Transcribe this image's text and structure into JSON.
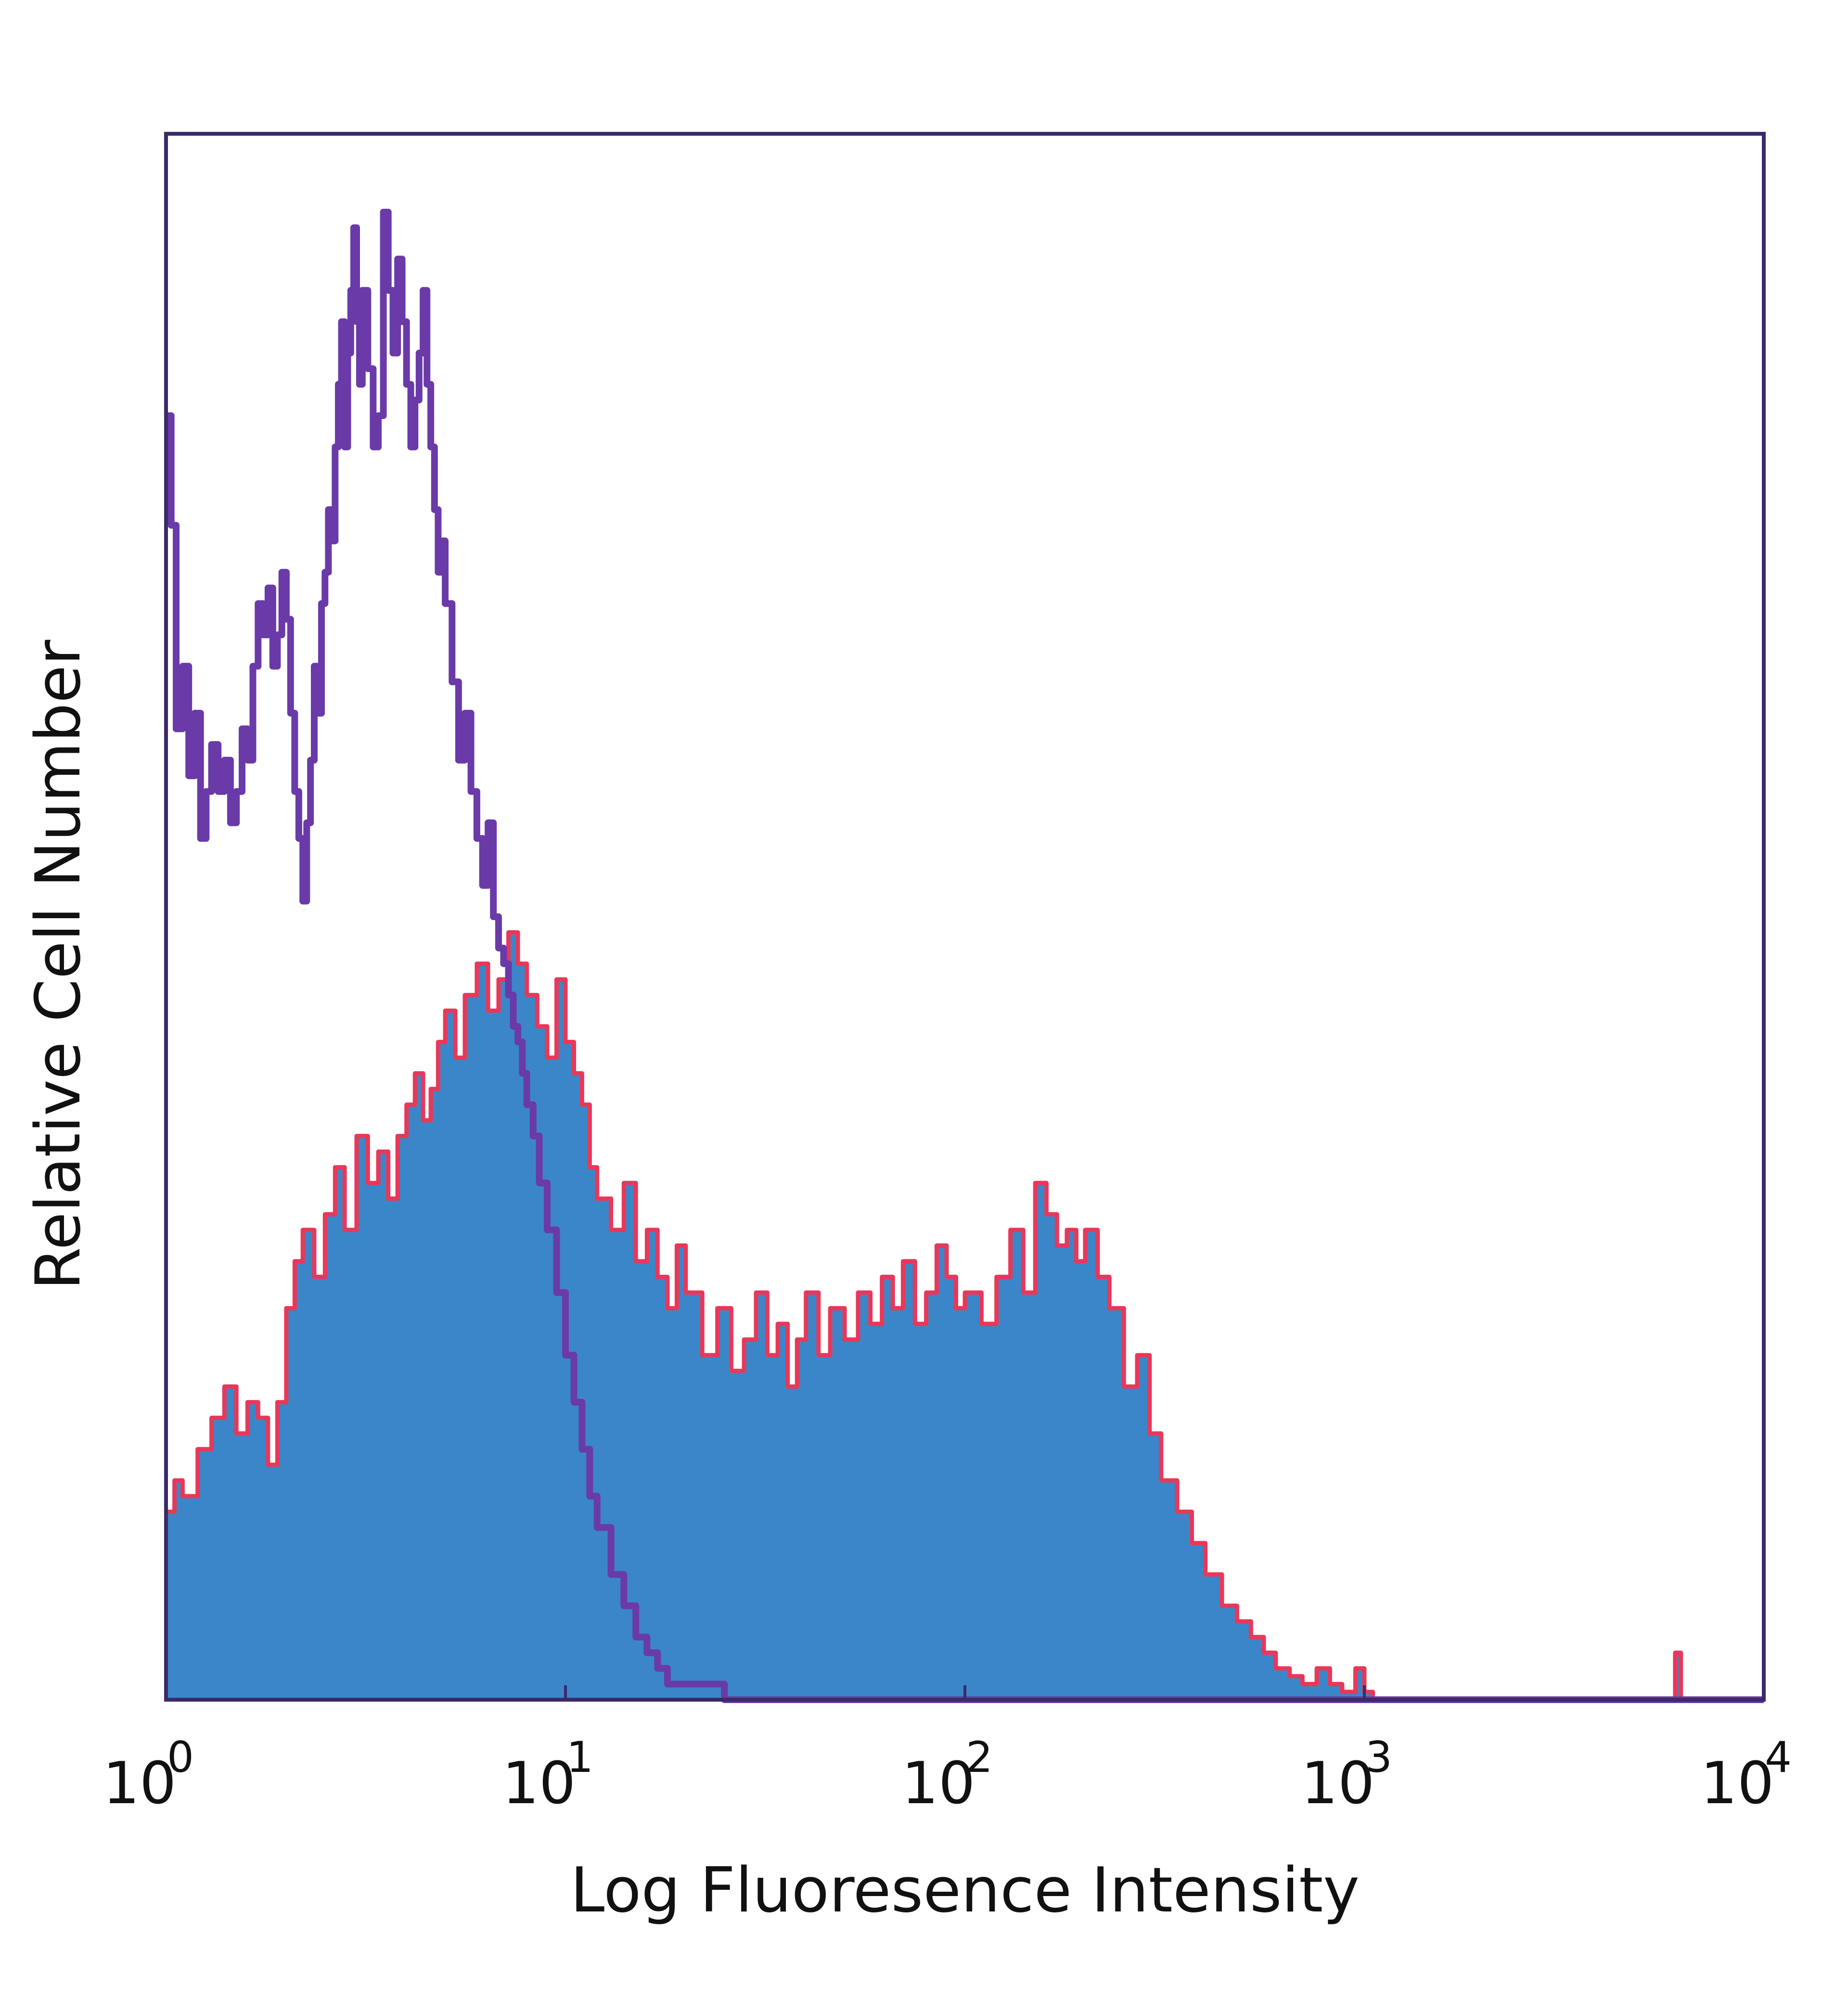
{
  "chart_data": {
    "type": "area",
    "x_scale": "log",
    "xlim": [
      1,
      10000
    ],
    "ylim": [
      0,
      1
    ],
    "xlabel": "Log Fluoresence Intensity",
    "ylabel": "Relative Cell Number",
    "x_ticks": [
      {
        "base": "10",
        "exp": "0",
        "value": 1
      },
      {
        "base": "10",
        "exp": "1",
        "value": 10
      },
      {
        "base": "10",
        "exp": "2",
        "value": 100
      },
      {
        "base": "10",
        "exp": "3",
        "value": 1000
      },
      {
        "base": "10",
        "exp": "4",
        "value": 10000
      }
    ],
    "colors": {
      "filled_fill": "#3b86c8",
      "filled_edge": "#e8385a",
      "outline": "#6a3aa8",
      "frame": "#3a2a6a"
    },
    "series": [
      {
        "style": "filled",
        "x": [
          1,
          1.05,
          1.1,
          1.2,
          1.3,
          1.4,
          1.5,
          1.6,
          1.7,
          1.8,
          1.9,
          2.0,
          2.1,
          2.2,
          2.35,
          2.5,
          2.65,
          2.8,
          3.0,
          3.2,
          3.4,
          3.6,
          3.8,
          4.0,
          4.2,
          4.4,
          4.6,
          4.8,
          5.0,
          5.3,
          5.6,
          6.0,
          6.4,
          6.8,
          7.2,
          7.6,
          8.0,
          8.5,
          9.0,
          9.5,
          10,
          10.5,
          11,
          11.5,
          12,
          13,
          14,
          15,
          16,
          17,
          18,
          19,
          20,
          22,
          24,
          26,
          28,
          30,
          32,
          34,
          36,
          38,
          40,
          43,
          46,
          50,
          54,
          58,
          62,
          66,
          70,
          75,
          80,
          85,
          90,
          95,
          100,
          110,
          120,
          130,
          140,
          150,
          160,
          170,
          180,
          190,
          200,
          215,
          230,
          250,
          270,
          290,
          310,
          340,
          370,
          400,
          440,
          480,
          520,
          560,
          600,
          650,
          700,
          760,
          820,
          880,
          950,
          1000,
          1050,
          1100,
          2000,
          4000,
          5800,
          6000,
          6200,
          8000,
          10000
        ],
        "y": [
          0.12,
          0.14,
          0.13,
          0.16,
          0.18,
          0.2,
          0.17,
          0.19,
          0.18,
          0.15,
          0.19,
          0.25,
          0.28,
          0.3,
          0.27,
          0.31,
          0.34,
          0.3,
          0.36,
          0.33,
          0.35,
          0.32,
          0.36,
          0.38,
          0.4,
          0.37,
          0.39,
          0.42,
          0.44,
          0.41,
          0.45,
          0.47,
          0.44,
          0.46,
          0.49,
          0.47,
          0.45,
          0.43,
          0.41,
          0.46,
          0.42,
          0.4,
          0.38,
          0.34,
          0.32,
          0.3,
          0.33,
          0.28,
          0.3,
          0.27,
          0.25,
          0.29,
          0.26,
          0.22,
          0.25,
          0.21,
          0.23,
          0.26,
          0.22,
          0.24,
          0.2,
          0.23,
          0.26,
          0.22,
          0.25,
          0.23,
          0.26,
          0.24,
          0.27,
          0.25,
          0.28,
          0.24,
          0.26,
          0.29,
          0.27,
          0.25,
          0.26,
          0.24,
          0.27,
          0.3,
          0.26,
          0.33,
          0.31,
          0.29,
          0.3,
          0.28,
          0.3,
          0.27,
          0.25,
          0.2,
          0.22,
          0.17,
          0.14,
          0.12,
          0.1,
          0.08,
          0.06,
          0.05,
          0.04,
          0.03,
          0.02,
          0.015,
          0.01,
          0.02,
          0.01,
          0.005,
          0.02,
          0.005,
          0.0,
          0.0,
          0.0,
          0.0,
          0.0,
          0.03,
          0.0,
          0.0,
          0.0
        ]
      },
      {
        "style": "outline",
        "x": [
          1,
          1.03,
          1.06,
          1.1,
          1.14,
          1.18,
          1.22,
          1.26,
          1.3,
          1.35,
          1.4,
          1.45,
          1.5,
          1.55,
          1.6,
          1.65,
          1.7,
          1.75,
          1.8,
          1.85,
          1.9,
          1.95,
          2.0,
          2.05,
          2.1,
          2.15,
          2.2,
          2.25,
          2.3,
          2.35,
          2.4,
          2.45,
          2.5,
          2.55,
          2.6,
          2.65,
          2.7,
          2.75,
          2.8,
          2.85,
          2.9,
          2.95,
          3.0,
          3.05,
          3.1,
          3.2,
          3.3,
          3.4,
          3.5,
          3.6,
          3.7,
          3.8,
          3.9,
          4.0,
          4.1,
          4.2,
          4.3,
          4.4,
          4.5,
          4.6,
          4.7,
          4.8,
          4.9,
          5.0,
          5.2,
          5.4,
          5.6,
          5.8,
          6.0,
          6.2,
          6.4,
          6.6,
          6.8,
          7.0,
          7.2,
          7.4,
          7.6,
          7.8,
          8.0,
          8.3,
          8.6,
          9.0,
          9.5,
          10,
          10.5,
          11,
          11.5,
          12,
          13,
          14,
          15,
          16,
          17,
          18,
          20,
          25,
          30,
          40,
          60,
          80,
          100,
          150,
          200,
          250,
          300,
          10000
        ],
        "y": [
          0.82,
          0.75,
          0.62,
          0.66,
          0.59,
          0.63,
          0.55,
          0.58,
          0.61,
          0.58,
          0.6,
          0.56,
          0.58,
          0.62,
          0.6,
          0.66,
          0.7,
          0.68,
          0.71,
          0.66,
          0.68,
          0.72,
          0.69,
          0.63,
          0.58,
          0.55,
          0.51,
          0.56,
          0.6,
          0.66,
          0.63,
          0.7,
          0.72,
          0.76,
          0.74,
          0.8,
          0.84,
          0.88,
          0.8,
          0.86,
          0.9,
          0.94,
          0.88,
          0.84,
          0.9,
          0.85,
          0.8,
          0.82,
          0.95,
          0.9,
          0.86,
          0.92,
          0.88,
          0.84,
          0.8,
          0.83,
          0.86,
          0.9,
          0.84,
          0.8,
          0.76,
          0.72,
          0.74,
          0.7,
          0.65,
          0.6,
          0.63,
          0.58,
          0.55,
          0.52,
          0.56,
          0.5,
          0.48,
          0.47,
          0.45,
          0.43,
          0.42,
          0.4,
          0.38,
          0.36,
          0.33,
          0.3,
          0.26,
          0.22,
          0.19,
          0.16,
          0.13,
          0.11,
          0.08,
          0.06,
          0.04,
          0.03,
          0.02,
          0.01,
          0.01,
          0.0,
          0.0,
          0.0,
          0.0,
          0.0,
          0.0,
          0.0,
          0.0,
          0.0,
          0.0,
          0.0
        ]
      }
    ]
  }
}
